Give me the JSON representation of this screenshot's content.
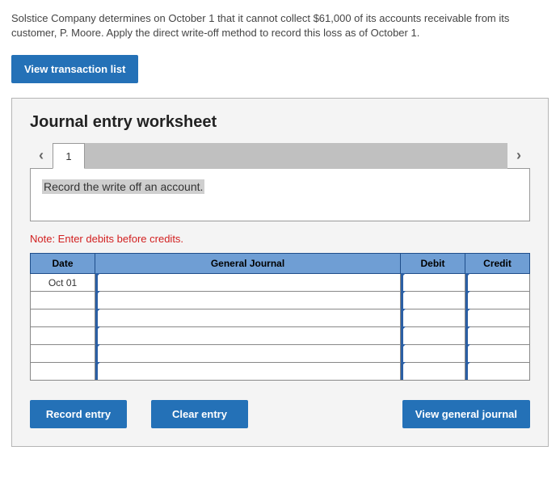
{
  "prompt": "Solstice Company determines on October 1 that it cannot collect $61,000 of its accounts receivable from its customer, P. Moore. Apply the direct write-off method to record this loss as of October 1.",
  "buttons": {
    "view_tx_list": "View transaction list",
    "record_entry": "Record entry",
    "clear_entry": "Clear entry",
    "view_gj": "View general journal"
  },
  "worksheet": {
    "title": "Journal entry worksheet",
    "tab_label": "1",
    "instruction": "Record the write off an account.",
    "note": "Note: Enter debits before credits.",
    "headers": {
      "date": "Date",
      "gj": "General Journal",
      "debit": "Debit",
      "credit": "Credit"
    },
    "rows": [
      {
        "date": "Oct 01",
        "gj": "",
        "debit": "",
        "credit": ""
      },
      {
        "date": "",
        "gj": "",
        "debit": "",
        "credit": ""
      },
      {
        "date": "",
        "gj": "",
        "debit": "",
        "credit": ""
      },
      {
        "date": "",
        "gj": "",
        "debit": "",
        "credit": ""
      },
      {
        "date": "",
        "gj": "",
        "debit": "",
        "credit": ""
      },
      {
        "date": "",
        "gj": "",
        "debit": "",
        "credit": ""
      }
    ]
  },
  "colors": {
    "primary_button": "#2471b7",
    "header_bg": "#6f9ed4",
    "header_border": "#1f4e8a",
    "cell_edge": "#2b5fa4",
    "note_red": "#d22020",
    "panel_bg": "#f4f4f4"
  }
}
